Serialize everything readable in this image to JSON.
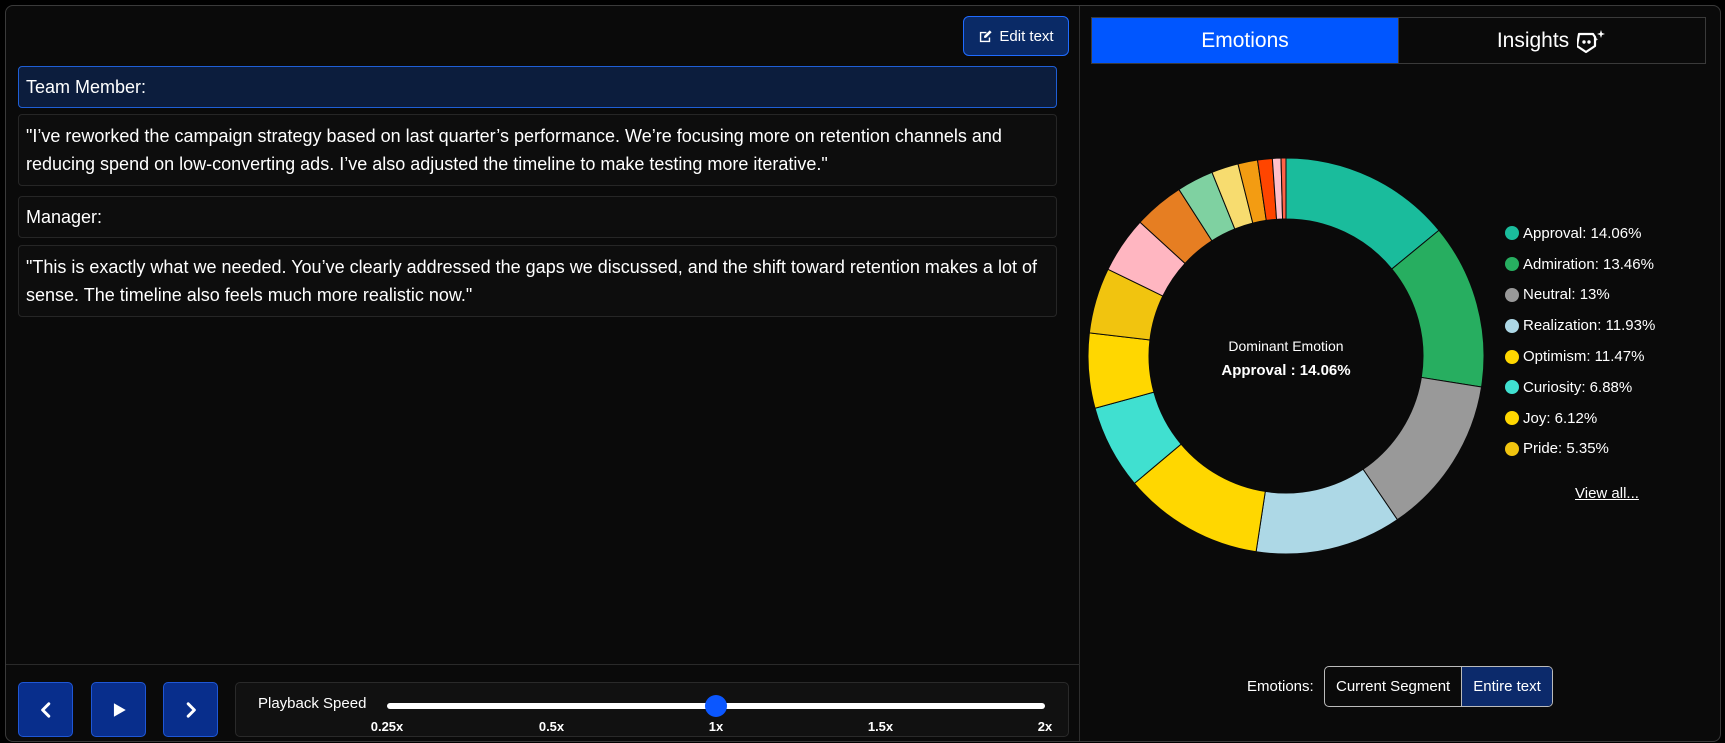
{
  "toolbar": {
    "edit_label": "Edit text"
  },
  "transcript": [
    {
      "kind": "speaker",
      "text": "Team Member:"
    },
    {
      "kind": "text",
      "text": "\"I’ve reworked the campaign strategy based on last quarter’s performance. We’re focusing more on retention channels and reducing spend on low-converting ads. I’ve also adjusted the timeline to make testing more iterative.\""
    },
    {
      "kind": "speaker",
      "text": "Manager:"
    },
    {
      "kind": "text",
      "text": "\"This is exactly what we needed. You’ve clearly addressed the gaps we discussed, and the shift toward retention makes a lot of sense. The timeline also feels much more realistic now.\""
    }
  ],
  "playback": {
    "label": "Playback Speed",
    "ticks": [
      "0.25x",
      "0.5x",
      "1x",
      "1.5x",
      "2x"
    ],
    "current": "1x"
  },
  "tabs": {
    "emotions": "Emotions",
    "insights": "Insights"
  },
  "chart_center": {
    "title": "Dominant Emotion",
    "value": "Approval : 14.06%"
  },
  "legend": [
    {
      "label": "Approval: 14.06%",
      "color": "#1abc9c"
    },
    {
      "label": "Admiration: 13.46%",
      "color": "#27ae60"
    },
    {
      "label": "Neutral: 13%",
      "color": "#999999"
    },
    {
      "label": "Realization: 11.93%",
      "color": "#add8e6"
    },
    {
      "label": "Optimism: 11.47%",
      "color": "#ffd700"
    },
    {
      "label": "Curiosity: 6.88%",
      "color": "#40e0d0"
    },
    {
      "label": "Joy: 6.12%",
      "color": "#ffd700"
    },
    {
      "label": "Pride: 5.35%",
      "color": "#f1c40f"
    }
  ],
  "view_all": "View all...",
  "scope": {
    "label": "Emotions:",
    "options": [
      "Current Segment",
      "Entire text"
    ],
    "selected": "Entire text"
  },
  "chart_data": {
    "type": "pie",
    "series": [
      {
        "label": "Approval",
        "value": 14.06,
        "color": "#1abc9c"
      },
      {
        "label": "Admiration",
        "value": 13.46,
        "color": "#27ae60"
      },
      {
        "label": "Neutral",
        "value": 13,
        "color": "#999999"
      },
      {
        "label": "Realization",
        "value": 11.93,
        "color": "#add8e6"
      },
      {
        "label": "Optimism",
        "value": 11.47,
        "color": "#ffd700"
      },
      {
        "label": "Curiosity",
        "value": 6.88,
        "color": "#40e0d0"
      },
      {
        "label": "Joy",
        "value": 6.12,
        "color": "#ffd700"
      },
      {
        "label": "Pride",
        "value": 5.35,
        "color": "#f1c40f"
      },
      {
        "value": 4.6,
        "color": "#ffb6c1"
      },
      {
        "value": 4.1,
        "color": "#e67e22"
      },
      {
        "value": 3.0,
        "color": "#7fd1a1"
      },
      {
        "value": 2.2,
        "color": "#f7dc6f"
      },
      {
        "value": 1.6,
        "color": "#f39c12"
      },
      {
        "value": 1.2,
        "color": "#ff4500"
      },
      {
        "value": 0.7,
        "color": "#ffc0cb"
      },
      {
        "value": 0.4,
        "color": "#ff6347"
      }
    ]
  }
}
